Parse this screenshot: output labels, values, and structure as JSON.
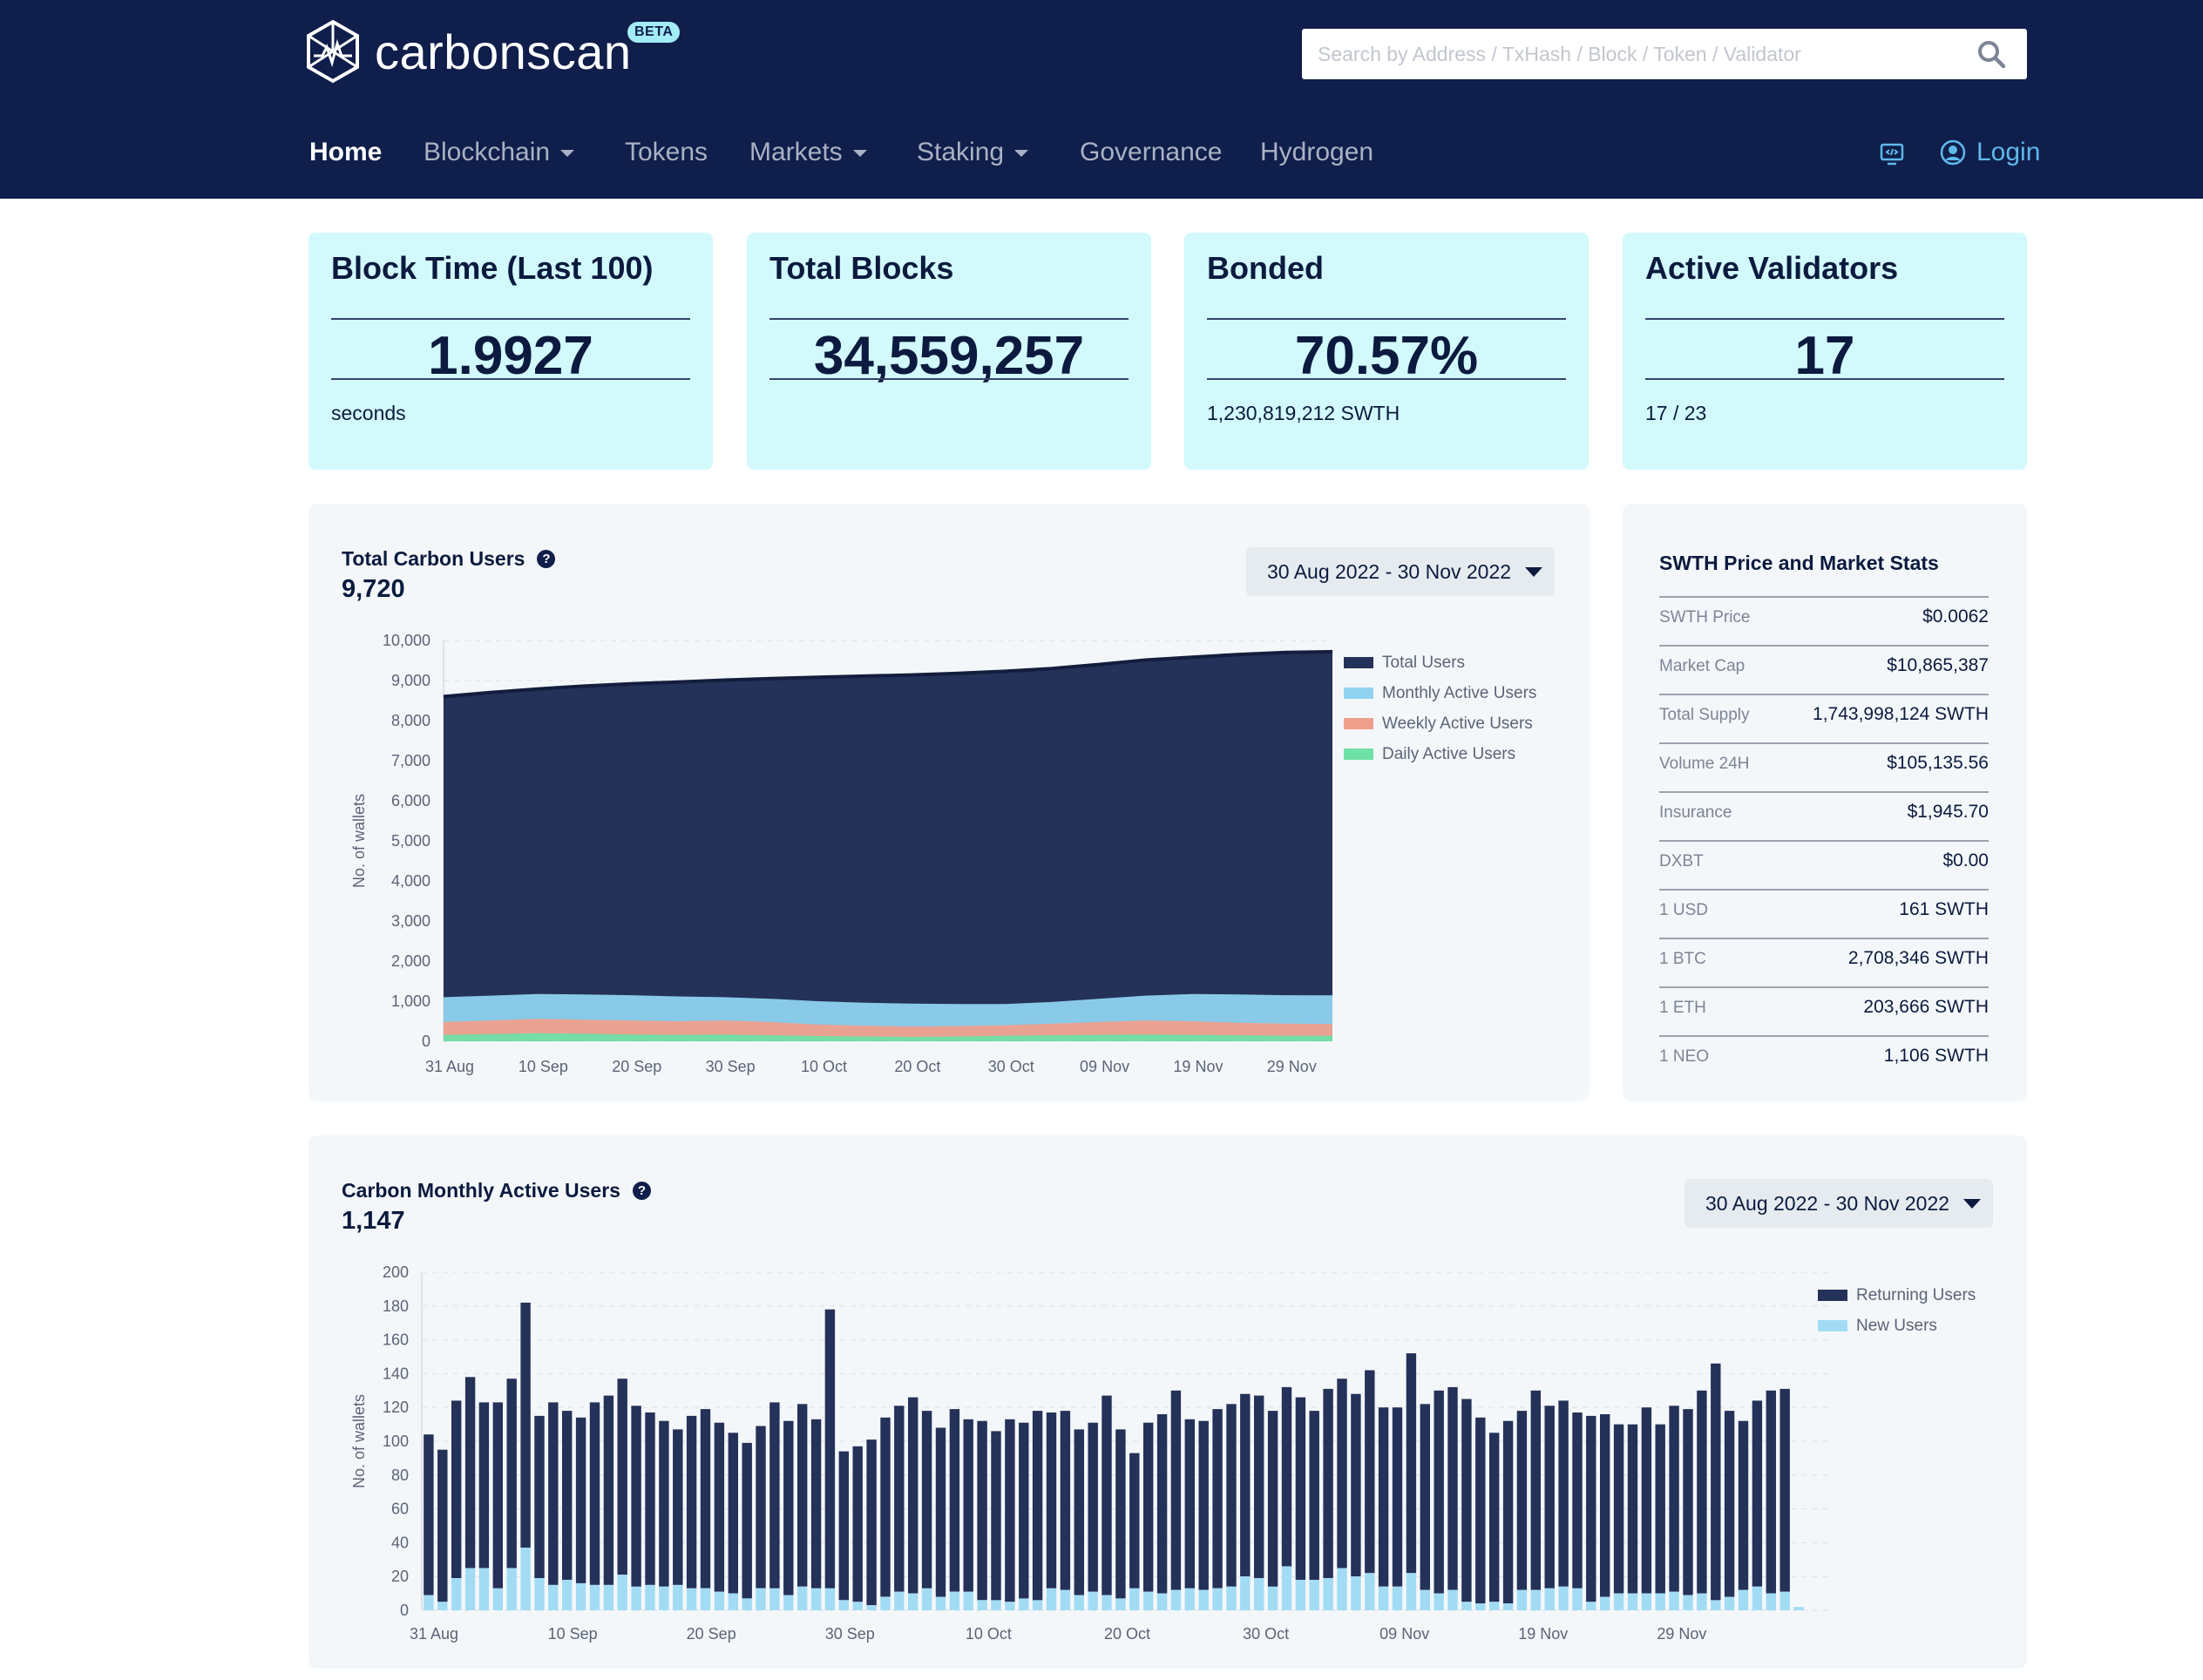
{
  "header": {
    "brand": "carbonscan",
    "beta": "BETA",
    "search_placeholder": "Search by Address / TxHash / Block / Token / Validator",
    "nav": [
      {
        "label": "Home"
      },
      {
        "label": "Blockchain"
      },
      {
        "label": "Tokens"
      },
      {
        "label": "Markets"
      },
      {
        "label": "Staking"
      },
      {
        "label": "Governance"
      },
      {
        "label": "Hydrogen"
      }
    ],
    "login": "Login",
    "monitor_icon": "code-monitor-icon"
  },
  "colors": {
    "navy": "#0f1e4a",
    "card_bg": "#d2f9fb",
    "total_users": "#243158",
    "monthly": "#8fd3f0",
    "weekly": "#ee9f8c",
    "daily": "#6fe0a7",
    "returning": "#243158",
    "new_users": "#a2dcf4"
  },
  "stats": [
    {
      "title": "Block Time (Last 100)",
      "value": "1.9927",
      "sub": "seconds"
    },
    {
      "title": "Total Blocks",
      "value": "34,559,257",
      "sub": ""
    },
    {
      "title": "Bonded",
      "value": "70.57%",
      "sub": "1,230,819,212 SWTH"
    },
    {
      "title": "Active Validators",
      "value": "17",
      "sub": "17 / 23"
    }
  ],
  "users_panel": {
    "title": "Total Carbon Users",
    "value": "9,720",
    "date_range": "30 Aug 2022 - 30 Nov 2022"
  },
  "mau_panel": {
    "title": "Carbon Monthly Active Users",
    "value": "1,147",
    "date_range": "30 Aug 2022 - 30 Nov 2022"
  },
  "market": {
    "title": "SWTH Price and Market Stats",
    "rows": [
      {
        "label": "SWTH Price",
        "value": "$0.0062"
      },
      {
        "label": "Market Cap",
        "value": "$10,865,387"
      },
      {
        "label": "Total Supply",
        "value": "1,743,998,124  SWTH"
      },
      {
        "label": "Volume 24H",
        "value": "$105,135.56"
      },
      {
        "label": "Insurance",
        "value": "$1,945.70"
      },
      {
        "label": "DXBT",
        "value": "$0.00"
      },
      {
        "label": "1 USD",
        "value": "161  SWTH"
      },
      {
        "label": "1 BTC",
        "value": "2,708,346  SWTH"
      },
      {
        "label": "1 ETH",
        "value": "203,666  SWTH"
      },
      {
        "label": "1 NEO",
        "value": "1,106  SWTH"
      }
    ]
  },
  "chart_data": [
    {
      "type": "area",
      "ylabel": "No. of wallets",
      "ylim": [
        0,
        10000
      ],
      "yticks": [
        "0",
        "1,000",
        "2,000",
        "3,000",
        "4,000",
        "5,000",
        "6,000",
        "7,000",
        "8,000",
        "9,000",
        "10,000"
      ],
      "xticks": [
        "31 Aug",
        "10 Sep",
        "20 Sep",
        "30 Sep",
        "10 Oct",
        "20 Oct",
        "30 Oct",
        "09 Nov",
        "19 Nov",
        "29 Nov"
      ],
      "x": [
        "31 Aug",
        "05 Sep",
        "10 Sep",
        "15 Sep",
        "20 Sep",
        "25 Sep",
        "30 Sep",
        "05 Oct",
        "10 Oct",
        "15 Oct",
        "20 Oct",
        "25 Oct",
        "30 Oct",
        "04 Nov",
        "09 Nov",
        "14 Nov",
        "19 Nov",
        "24 Nov",
        "29 Nov",
        "30 Nov"
      ],
      "legend_position": "right",
      "grid": true,
      "series": [
        {
          "name": "Total Users",
          "values": [
            8600,
            8700,
            8790,
            8860,
            8920,
            8960,
            9010,
            9050,
            9080,
            9110,
            9140,
            9180,
            9230,
            9300,
            9400,
            9510,
            9580,
            9650,
            9700,
            9720
          ]
        },
        {
          "name": "Monthly Active Users",
          "values": [
            1100,
            1140,
            1180,
            1170,
            1150,
            1120,
            1100,
            1060,
            1000,
            960,
            940,
            930,
            930,
            980,
            1060,
            1140,
            1180,
            1170,
            1150,
            1147
          ]
        },
        {
          "name": "Weekly Active Users",
          "values": [
            480,
            520,
            560,
            540,
            520,
            500,
            520,
            480,
            420,
            390,
            370,
            380,
            400,
            440,
            480,
            520,
            500,
            460,
            440,
            430
          ]
        },
        {
          "name": "Daily Active Users",
          "values": [
            160,
            180,
            200,
            190,
            170,
            160,
            170,
            150,
            130,
            120,
            110,
            120,
            140,
            150,
            160,
            170,
            160,
            150,
            140,
            140
          ]
        }
      ]
    },
    {
      "type": "bar",
      "stacked": true,
      "ylabel": "No. of wallets",
      "ylim": [
        0,
        200
      ],
      "yticks": [
        "0",
        "20",
        "40",
        "60",
        "80",
        "100",
        "120",
        "140",
        "160",
        "180",
        "200"
      ],
      "xticks": [
        "31 Aug",
        "10 Sep",
        "20 Sep",
        "30 Sep",
        "10 Oct",
        "20 Oct",
        "30 Oct",
        "09 Nov",
        "19 Nov",
        "29 Nov"
      ],
      "legend_position": "right",
      "grid": true,
      "series": [
        {
          "name": "Returning Users",
          "values": [
            95,
            90,
            105,
            113,
            98,
            110,
            112,
            145,
            96,
            108,
            100,
            98,
            108,
            112,
            116,
            107,
            102,
            98,
            92,
            102,
            106,
            100,
            95,
            92,
            96,
            110,
            103,
            108,
            100,
            165,
            88,
            92,
            98,
            106,
            110,
            116,
            105,
            100,
            108,
            102,
            106,
            100,
            108,
            104,
            112,
            104,
            106,
            98,
            100,
            118,
            100,
            80,
            100,
            106,
            118,
            100,
            100,
            106,
            108,
            108,
            108,
            104,
            106,
            108,
            100,
            112,
            112,
            108,
            120,
            106,
            106,
            130,
            110,
            120,
            120,
            120,
            110,
            100,
            108,
            106,
            118,
            108,
            110,
            104,
            110,
            108,
            100,
            100,
            110,
            100,
            110,
            110,
            120,
            140,
            110,
            100,
            110,
            120,
            120,
            0
          ]
        },
        {
          "name": "New Users",
          "values": [
            9,
            5,
            19,
            25,
            25,
            13,
            25,
            37,
            19,
            15,
            18,
            16,
            15,
            15,
            21,
            14,
            15,
            14,
            15,
            13,
            13,
            11,
            10,
            7,
            13,
            13,
            9,
            14,
            13,
            13,
            6,
            5,
            3,
            8,
            11,
            10,
            13,
            8,
            11,
            11,
            6,
            6,
            5,
            7,
            6,
            13,
            12,
            9,
            11,
            9,
            7,
            13,
            11,
            10,
            12,
            13,
            12,
            13,
            14,
            20,
            19,
            14,
            26,
            18,
            18,
            19,
            25,
            20,
            22,
            14,
            14,
            22,
            12,
            10,
            12,
            5,
            4,
            5,
            4,
            12,
            12,
            13,
            14,
            13,
            5,
            8,
            10,
            10,
            10,
            10,
            11,
            9,
            10,
            6,
            8,
            12,
            14,
            10,
            11,
            2
          ]
        }
      ]
    }
  ]
}
